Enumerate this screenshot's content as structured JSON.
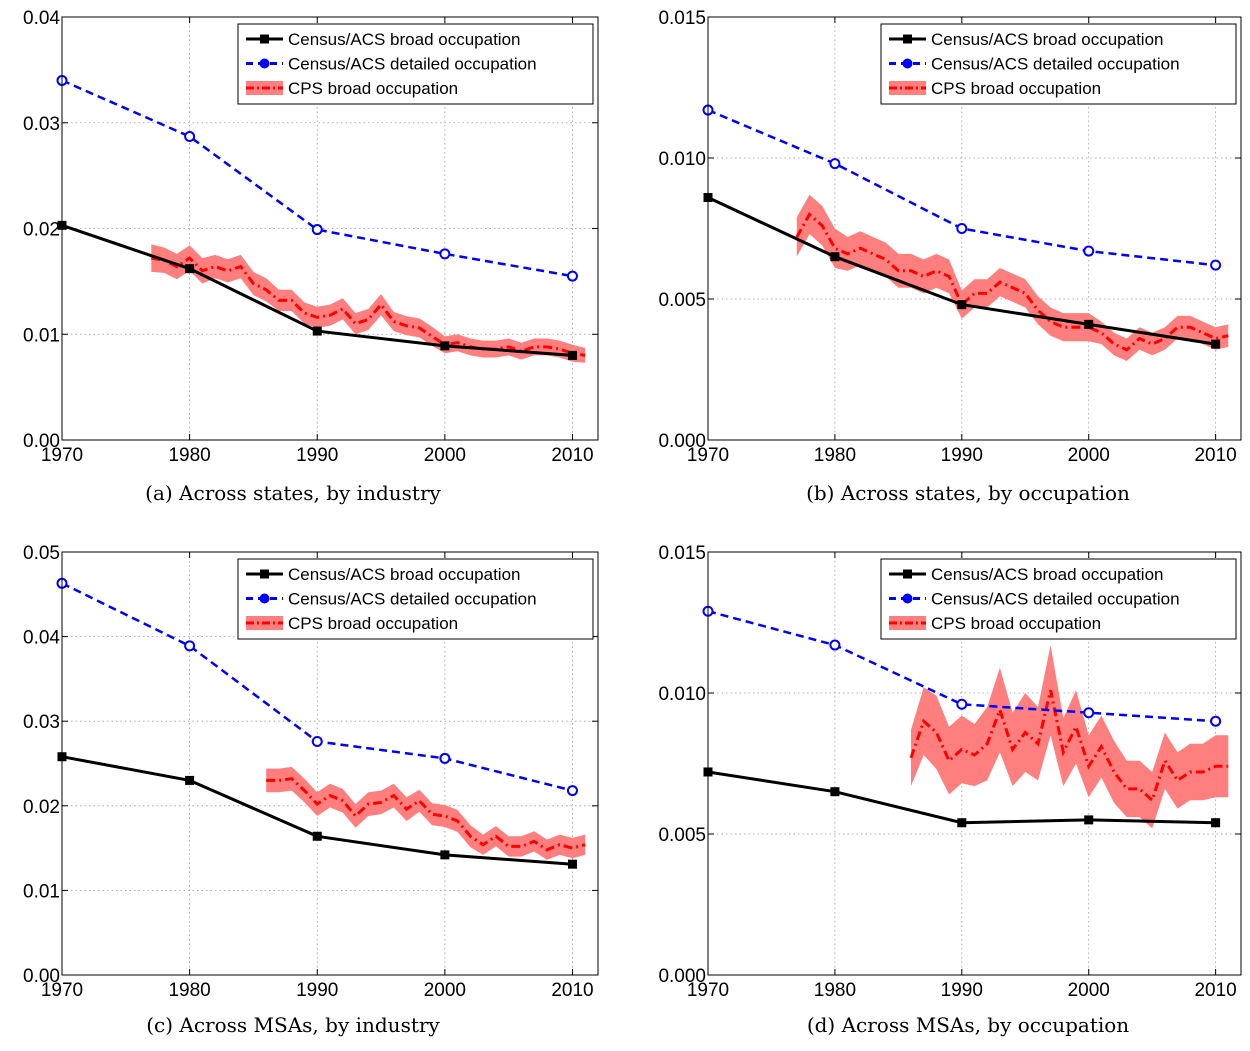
{
  "legend": {
    "broad": "Census/ACS broad occupation",
    "detailed": "Census/ACS detailed occupation",
    "cps": "CPS broad occupation"
  },
  "colors": {
    "broad": "#000000",
    "detailed": "#0000ff",
    "cps": "#ff0000",
    "band": "#ff7f7f"
  },
  "chart_data": [
    {
      "type": "line",
      "caption": "(a) Across states, by industry",
      "xlim": [
        1970,
        2012
      ],
      "x_ticks": [
        "1970",
        "1980",
        "1990",
        "2000",
        "2010"
      ],
      "ylim": [
        0,
        0.04
      ],
      "y_ticks": [
        "0.00",
        "0.01",
        "0.02",
        "0.03",
        "0.04"
      ],
      "grid": true,
      "legend_position": "top-right",
      "series": [
        {
          "name": "Census/ACS broad occupation",
          "x": [
            1970,
            1980,
            1990,
            2000,
            2010
          ],
          "y": [
            0.0203,
            0.0162,
            0.0103,
            0.0089,
            0.008
          ]
        },
        {
          "name": "Census/ACS detailed occupation",
          "x": [
            1970,
            1980,
            1990,
            2000,
            2010
          ],
          "y": [
            0.034,
            0.0287,
            0.0199,
            0.0176,
            0.0155
          ]
        },
        {
          "name": "CPS broad occupation",
          "x": [
            1977,
            1978,
            1979,
            1980,
            1981,
            1982,
            1983,
            1984,
            1985,
            1986,
            1987,
            1988,
            1989,
            1990,
            1991,
            1992,
            1993,
            1994,
            1995,
            1996,
            1997,
            1998,
            1999,
            2000,
            2001,
            2002,
            2003,
            2004,
            2005,
            2006,
            2007,
            2008,
            2009,
            2010,
            2011
          ],
          "y": [
            0.0172,
            0.017,
            0.0164,
            0.0172,
            0.016,
            0.0164,
            0.016,
            0.0164,
            0.0148,
            0.0142,
            0.0132,
            0.0132,
            0.012,
            0.0116,
            0.0118,
            0.0124,
            0.011,
            0.0114,
            0.0128,
            0.0112,
            0.0108,
            0.0106,
            0.0098,
            0.009,
            0.0092,
            0.0088,
            0.0086,
            0.0086,
            0.0088,
            0.0084,
            0.0088,
            0.0088,
            0.0086,
            0.0082,
            0.008
          ],
          "band": [
            0.0013,
            0.0012,
            0.0012,
            0.0012,
            0.0012,
            0.0011,
            0.0011,
            0.0011,
            0.0011,
            0.0011,
            0.001,
            0.001,
            0.001,
            0.001,
            0.001,
            0.001,
            0.001,
            0.001,
            0.001,
            0.0009,
            0.0009,
            0.0009,
            0.0009,
            0.0008,
            0.0008,
            0.0008,
            0.0008,
            0.0008,
            0.0008,
            0.0008,
            0.0008,
            0.0008,
            0.0008,
            0.0008,
            0.0007
          ]
        }
      ]
    },
    {
      "type": "line",
      "caption": "(b) Across states, by occupation",
      "xlim": [
        1970,
        2012
      ],
      "x_ticks": [
        "1970",
        "1980",
        "1990",
        "2000",
        "2010"
      ],
      "ylim": [
        0,
        0.015
      ],
      "y_ticks": [
        "0.000",
        "0.005",
        "0.010",
        "0.015"
      ],
      "grid": true,
      "legend_position": "top-right",
      "series": [
        {
          "name": "Census/ACS broad occupation",
          "x": [
            1970,
            1980,
            1990,
            2000,
            2010
          ],
          "y": [
            0.0086,
            0.0065,
            0.0048,
            0.0041,
            0.0034
          ]
        },
        {
          "name": "Census/ACS detailed occupation",
          "x": [
            1970,
            1980,
            1990,
            2000,
            2010
          ],
          "y": [
            0.0117,
            0.0098,
            0.0075,
            0.0067,
            0.0062
          ]
        },
        {
          "name": "CPS broad occupation",
          "x": [
            1977,
            1978,
            1979,
            1980,
            1981,
            1982,
            1983,
            1984,
            1985,
            1986,
            1987,
            1988,
            1989,
            1990,
            1991,
            1992,
            1993,
            1994,
            1995,
            1996,
            1997,
            1998,
            1999,
            2000,
            2001,
            2002,
            2003,
            2004,
            2005,
            2006,
            2007,
            2008,
            2009,
            2010,
            2011
          ],
          "y": [
            0.0072,
            0.008,
            0.0076,
            0.0068,
            0.0066,
            0.0068,
            0.0066,
            0.0064,
            0.006,
            0.006,
            0.0058,
            0.006,
            0.0058,
            0.0048,
            0.0052,
            0.0052,
            0.0056,
            0.0054,
            0.0052,
            0.0046,
            0.0042,
            0.004,
            0.004,
            0.004,
            0.0038,
            0.0034,
            0.0032,
            0.0036,
            0.0034,
            0.0036,
            0.004,
            0.004,
            0.0038,
            0.0036,
            0.0037
          ],
          "band": [
            0.0007,
            0.0007,
            0.0007,
            0.0007,
            0.0006,
            0.0006,
            0.0006,
            0.0006,
            0.0006,
            0.0006,
            0.0006,
            0.0006,
            0.0006,
            0.0005,
            0.0005,
            0.0005,
            0.0005,
            0.0005,
            0.0005,
            0.0005,
            0.0005,
            0.0005,
            0.0005,
            0.0005,
            0.0004,
            0.0004,
            0.0004,
            0.0004,
            0.0004,
            0.0004,
            0.0004,
            0.0004,
            0.0004,
            0.0004,
            0.0004
          ]
        }
      ]
    },
    {
      "type": "line",
      "caption": "(c) Across MSAs, by industry",
      "xlim": [
        1970,
        2012
      ],
      "x_ticks": [
        "1970",
        "1980",
        "1990",
        "2000",
        "2010"
      ],
      "ylim": [
        0,
        0.05
      ],
      "y_ticks": [
        "0.00",
        "0.01",
        "0.02",
        "0.03",
        "0.04",
        "0.05"
      ],
      "grid": true,
      "legend_position": "top-right",
      "series": [
        {
          "name": "Census/ACS broad occupation",
          "x": [
            1970,
            1980,
            1990,
            2000,
            2010
          ],
          "y": [
            0.0258,
            0.023,
            0.0164,
            0.0142,
            0.0131
          ]
        },
        {
          "name": "Census/ACS detailed occupation",
          "x": [
            1970,
            1980,
            1990,
            2000,
            2010
          ],
          "y": [
            0.0463,
            0.0389,
            0.0276,
            0.0256,
            0.0218
          ]
        },
        {
          "name": "CPS broad occupation",
          "x": [
            1986,
            1987,
            1988,
            1989,
            1990,
            1991,
            1992,
            1993,
            1994,
            1995,
            1996,
            1997,
            1998,
            1999,
            2000,
            2001,
            2002,
            2003,
            2004,
            2005,
            2006,
            2007,
            2008,
            2009,
            2010,
            2011
          ],
          "y": [
            0.023,
            0.023,
            0.0232,
            0.0218,
            0.0202,
            0.0212,
            0.0206,
            0.0188,
            0.0202,
            0.0204,
            0.0212,
            0.0196,
            0.0206,
            0.019,
            0.0188,
            0.0182,
            0.0164,
            0.0154,
            0.0164,
            0.0152,
            0.0152,
            0.0158,
            0.0148,
            0.0154,
            0.015,
            0.0154
          ],
          "band": [
            0.0014,
            0.0014,
            0.0014,
            0.0014,
            0.0014,
            0.0014,
            0.0014,
            0.0014,
            0.0014,
            0.0014,
            0.0014,
            0.0014,
            0.0013,
            0.0013,
            0.0013,
            0.0013,
            0.0013,
            0.0012,
            0.0012,
            0.0012,
            0.0012,
            0.0012,
            0.0012,
            0.0012,
            0.0012,
            0.0012
          ]
        }
      ]
    },
    {
      "type": "line",
      "caption": "(d) Across MSAs, by occupation",
      "xlim": [
        1970,
        2012
      ],
      "x_ticks": [
        "1970",
        "1980",
        "1990",
        "2000",
        "2010"
      ],
      "ylim": [
        0,
        0.015
      ],
      "y_ticks": [
        "0.000",
        "0.005",
        "0.010",
        "0.015"
      ],
      "grid": true,
      "legend_position": "top-right",
      "series": [
        {
          "name": "Census/ACS broad occupation",
          "x": [
            1970,
            1980,
            1990,
            2000,
            2010
          ],
          "y": [
            0.0072,
            0.0065,
            0.0054,
            0.0055,
            0.0054
          ]
        },
        {
          "name": "Census/ACS detailed occupation",
          "x": [
            1970,
            1980,
            1990,
            2000,
            2010
          ],
          "y": [
            0.0129,
            0.0117,
            0.0096,
            0.0093,
            0.009
          ]
        },
        {
          "name": "CPS broad occupation",
          "x": [
            1986,
            1987,
            1988,
            1989,
            1990,
            1991,
            1992,
            1993,
            1994,
            1995,
            1996,
            1997,
            1998,
            1999,
            2000,
            2001,
            2002,
            2003,
            2004,
            2005,
            2006,
            2007,
            2008,
            2009,
            2010,
            2011
          ],
          "y": [
            0.0077,
            0.009,
            0.0086,
            0.0076,
            0.008,
            0.0078,
            0.0082,
            0.0094,
            0.008,
            0.0086,
            0.0082,
            0.0101,
            0.0079,
            0.0088,
            0.0074,
            0.0081,
            0.0072,
            0.0066,
            0.0066,
            0.0062,
            0.0076,
            0.0069,
            0.0072,
            0.0072,
            0.0074,
            0.0074
          ],
          "band": [
            0.001,
            0.0012,
            0.0013,
            0.0012,
            0.0012,
            0.0011,
            0.0013,
            0.0015,
            0.0013,
            0.0014,
            0.0013,
            0.0016,
            0.0012,
            0.0013,
            0.0011,
            0.0011,
            0.0011,
            0.001,
            0.001,
            0.001,
            0.001,
            0.001,
            0.001,
            0.001,
            0.0011,
            0.0011
          ]
        }
      ]
    }
  ]
}
